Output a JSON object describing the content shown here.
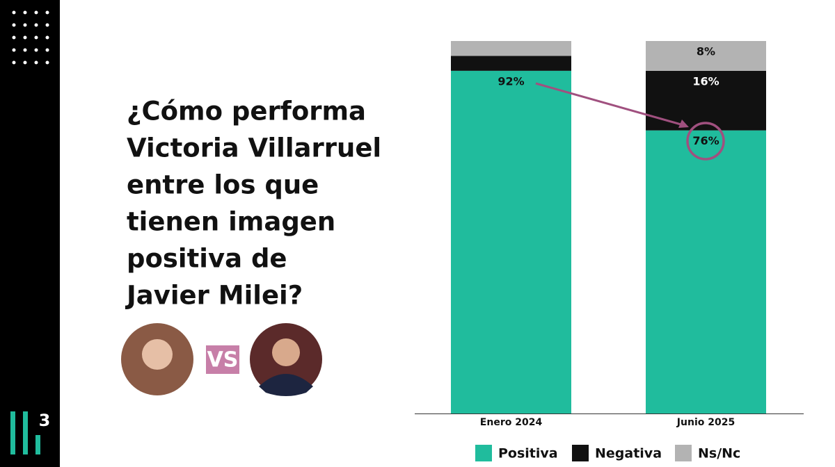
{
  "title_lines": [
    "¿Cómo performa",
    "Victoria Villarruel",
    "entre los que",
    "tienen imagen",
    "positiva de",
    "Javier Milei?"
  ],
  "vs_label": "VS",
  "logo": "3",
  "chart_data": {
    "type": "stacked_bar",
    "categories": [
      "Enero 2024",
      "Junio 2025"
    ],
    "ylim": [
      0,
      100
    ],
    "series": [
      {
        "name": "Positiva",
        "color": "#20bc9d",
        "label_color": "#111111",
        "values": [
          92,
          76
        ],
        "value_labels": [
          "92%",
          "76%"
        ]
      },
      {
        "name": "Negativa",
        "color": "#111111",
        "label_color": "#ffffff",
        "values": [
          4,
          16
        ],
        "value_labels": [
          null,
          "16%"
        ]
      },
      {
        "name": "Ns/Nc",
        "color": "#b3b3b3",
        "label_color": "#111111",
        "values": [
          4,
          8
        ],
        "value_labels": [
          null,
          "8%"
        ]
      }
    ]
  }
}
